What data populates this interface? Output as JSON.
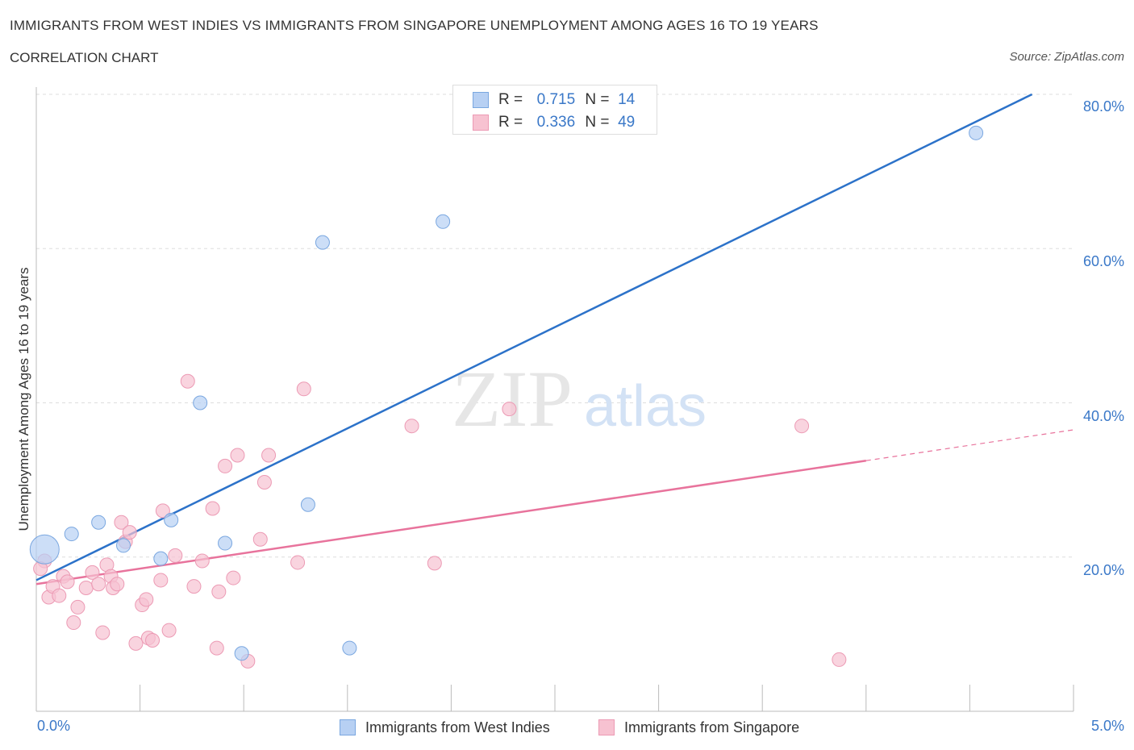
{
  "header": {
    "title": "IMMIGRANTS FROM WEST INDIES VS IMMIGRANTS FROM SINGAPORE UNEMPLOYMENT AMONG AGES 16 TO 19 YEARS",
    "subtitle": "CORRELATION CHART",
    "source": "Source: ZipAtlas.com"
  },
  "watermark": {
    "zip": "ZIP",
    "atlas": "atlas"
  },
  "legend": {
    "rows": [
      {
        "r_label": "R =",
        "r_value": "0.715",
        "n_label": "N =",
        "n_value": "14"
      },
      {
        "r_label": "R =",
        "r_value": "0.336",
        "n_label": "N =",
        "n_value": "49"
      }
    ]
  },
  "bottom_legend": {
    "west_indies": "Immigrants from West Indies",
    "singapore": "Immigrants from Singapore"
  },
  "colors": {
    "west_indies_fill": "#b7d0f3",
    "west_indies_stroke": "#7aa7e0",
    "west_indies_line": "#2c72c9",
    "singapore_fill": "#f7c2d1",
    "singapore_stroke": "#ec9ab4",
    "singapore_line": "#e8739c",
    "axis_text": "#3a78c8",
    "grid": "#dddddd"
  },
  "chart_data": {
    "type": "scatter",
    "title": "IMMIGRANTS FROM WEST INDIES VS IMMIGRANTS FROM SINGAPORE UNEMPLOYMENT AMONG AGES 16 TO 19 YEARS",
    "xlabel": "",
    "ylabel": "Unemployment Among Ages 16 to 19 years",
    "xlim": [
      0,
      5
    ],
    "ylim": [
      0,
      80
    ],
    "x_tick_labels": [
      "0.0%",
      "5.0%"
    ],
    "y_ticks": [
      20,
      40,
      60,
      80
    ],
    "y_tick_labels": [
      "20.0%",
      "40.0%",
      "60.0%",
      "80.0%"
    ],
    "grid": true,
    "legend_position": "top-center",
    "series": [
      {
        "name": "Immigrants from West Indies",
        "r": 0.715,
        "n": 14,
        "points": [
          {
            "x": 0.04,
            "y": 21.0,
            "big": true
          },
          {
            "x": 0.17,
            "y": 23.0
          },
          {
            "x": 0.3,
            "y": 24.5
          },
          {
            "x": 0.42,
            "y": 21.5
          },
          {
            "x": 0.6,
            "y": 19.8
          },
          {
            "x": 0.65,
            "y": 24.8
          },
          {
            "x": 0.79,
            "y": 40.0
          },
          {
            "x": 0.91,
            "y": 21.8
          },
          {
            "x": 0.99,
            "y": 7.5
          },
          {
            "x": 1.31,
            "y": 26.8
          },
          {
            "x": 1.38,
            "y": 60.8
          },
          {
            "x": 1.51,
            "y": 8.2
          },
          {
            "x": 1.96,
            "y": 63.5
          },
          {
            "x": 4.53,
            "y": 75.0
          }
        ],
        "trend": {
          "x": [
            0.0,
            4.8
          ],
          "y": [
            17.0,
            80.0
          ]
        }
      },
      {
        "name": "Immigrants from Singapore",
        "r": 0.336,
        "n": 49,
        "points": [
          {
            "x": 0.04,
            "y": 19.5
          },
          {
            "x": 0.06,
            "y": 14.8
          },
          {
            "x": 0.08,
            "y": 16.2
          },
          {
            "x": 0.11,
            "y": 15.0
          },
          {
            "x": 0.13,
            "y": 17.5
          },
          {
            "x": 0.15,
            "y": 16.8
          },
          {
            "x": 0.18,
            "y": 11.5
          },
          {
            "x": 0.2,
            "y": 13.5
          },
          {
            "x": 0.24,
            "y": 16.0
          },
          {
            "x": 0.27,
            "y": 18.0
          },
          {
            "x": 0.3,
            "y": 16.5
          },
          {
            "x": 0.32,
            "y": 10.2
          },
          {
            "x": 0.34,
            "y": 19.0
          },
          {
            "x": 0.36,
            "y": 17.5
          },
          {
            "x": 0.37,
            "y": 16.0
          },
          {
            "x": 0.39,
            "y": 16.5
          },
          {
            "x": 0.41,
            "y": 24.5
          },
          {
            "x": 0.43,
            "y": 22.0
          },
          {
            "x": 0.45,
            "y": 23.2
          },
          {
            "x": 0.48,
            "y": 8.8
          },
          {
            "x": 0.51,
            "y": 13.8
          },
          {
            "x": 0.53,
            "y": 14.5
          },
          {
            "x": 0.54,
            "y": 9.5
          },
          {
            "x": 0.56,
            "y": 9.2
          },
          {
            "x": 0.6,
            "y": 17.0
          },
          {
            "x": 0.61,
            "y": 26.0
          },
          {
            "x": 0.64,
            "y": 10.5
          },
          {
            "x": 0.67,
            "y": 20.2
          },
          {
            "x": 0.73,
            "y": 42.8
          },
          {
            "x": 0.76,
            "y": 16.2
          },
          {
            "x": 0.8,
            "y": 19.5
          },
          {
            "x": 0.85,
            "y": 26.3
          },
          {
            "x": 0.87,
            "y": 8.2
          },
          {
            "x": 0.88,
            "y": 15.5
          },
          {
            "x": 0.91,
            "y": 31.8
          },
          {
            "x": 0.95,
            "y": 17.3
          },
          {
            "x": 0.97,
            "y": 33.2
          },
          {
            "x": 1.02,
            "y": 6.5
          },
          {
            "x": 1.08,
            "y": 22.3
          },
          {
            "x": 1.1,
            "y": 29.7
          },
          {
            "x": 1.12,
            "y": 33.2
          },
          {
            "x": 1.26,
            "y": 19.3
          },
          {
            "x": 1.29,
            "y": 41.8
          },
          {
            "x": 1.81,
            "y": 37.0
          },
          {
            "x": 1.92,
            "y": 19.2
          },
          {
            "x": 2.28,
            "y": 39.2
          },
          {
            "x": 3.69,
            "y": 37.0
          },
          {
            "x": 3.87,
            "y": 6.7
          },
          {
            "x": 0.02,
            "y": 18.5
          }
        ],
        "trend": {
          "x": [
            0.0,
            4.0
          ],
          "y": [
            16.5,
            32.5
          ]
        },
        "trend_dashed_extension": {
          "x": [
            4.0,
            5.0
          ],
          "y": [
            32.5,
            36.5
          ]
        }
      }
    ]
  },
  "axes": {
    "ylabel": "Unemployment Among Ages 16 to 19 years",
    "x_left": "0.0%",
    "x_right": "5.0%",
    "y_labels": [
      "20.0%",
      "40.0%",
      "60.0%",
      "80.0%"
    ]
  }
}
